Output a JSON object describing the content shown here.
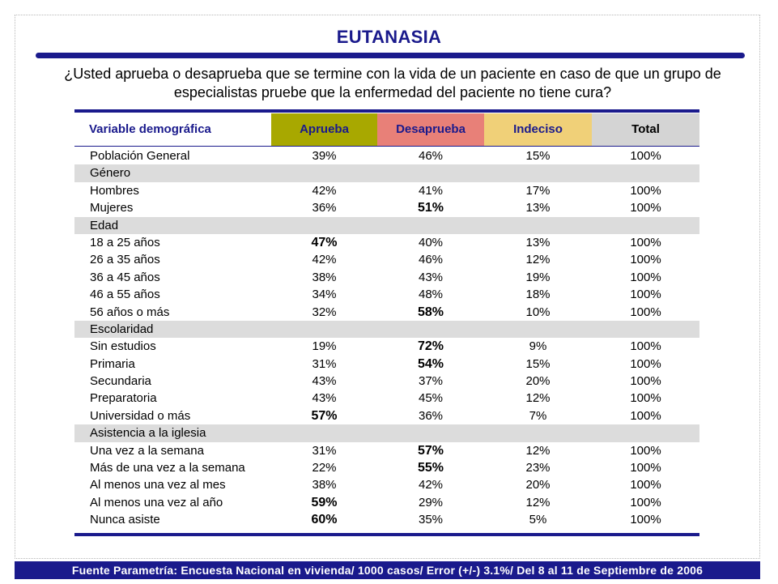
{
  "title": "EUTANASIA",
  "question": "¿Usted aprueba o desaprueba que se termine con la vida de un paciente en caso de que un grupo de especialistas pruebe que la enfermedad del paciente no tiene cura?",
  "colors": {
    "navy": "#1a1a8c",
    "aprueba": "#a8a800",
    "desaprueba": "#e88078",
    "indeciso": "#f0d078",
    "total": "#d4d4d4",
    "group_bg": "#dcdcdc"
  },
  "headers": {
    "variable": "Variable demográfica",
    "aprueba": "Aprueba",
    "desaprueba": "Desaprueba",
    "indeciso": "Indeciso",
    "total": "Total"
  },
  "rows": [
    {
      "label": "Población General",
      "aprueba": "39%",
      "desaprueba": "46%",
      "indeciso": "15%",
      "total": "100%"
    },
    {
      "label": "Género",
      "group": true
    },
    {
      "label": "Hombres",
      "aprueba": "42%",
      "desaprueba": "41%",
      "indeciso": "17%",
      "total": "100%"
    },
    {
      "label": "Mujeres",
      "aprueba": "36%",
      "desaprueba": "51%",
      "indeciso": "13%",
      "total": "100%",
      "bold": "desaprueba"
    },
    {
      "label": "Edad",
      "group": true
    },
    {
      "label": "18 a 25 años",
      "aprueba": "47%",
      "desaprueba": "40%",
      "indeciso": "13%",
      "total": "100%",
      "bold": "aprueba"
    },
    {
      "label": "26 a 35 años",
      "aprueba": "42%",
      "desaprueba": "46%",
      "indeciso": "12%",
      "total": "100%"
    },
    {
      "label": "36 a 45 años",
      "aprueba": "38%",
      "desaprueba": "43%",
      "indeciso": "19%",
      "total": "100%"
    },
    {
      "label": "46 a 55 años",
      "aprueba": "34%",
      "desaprueba": "48%",
      "indeciso": "18%",
      "total": "100%"
    },
    {
      "label": "56 años o más",
      "aprueba": "32%",
      "desaprueba": "58%",
      "indeciso": "10%",
      "total": "100%",
      "bold": "desaprueba"
    },
    {
      "label": "Escolaridad",
      "group": true
    },
    {
      "label": "Sin estudios",
      "aprueba": "19%",
      "desaprueba": "72%",
      "indeciso": "9%",
      "total": "100%",
      "bold": "desaprueba"
    },
    {
      "label": "Primaria",
      "aprueba": "31%",
      "desaprueba": "54%",
      "indeciso": "15%",
      "total": "100%",
      "bold": "desaprueba"
    },
    {
      "label": "Secundaria",
      "aprueba": "43%",
      "desaprueba": "37%",
      "indeciso": "20%",
      "total": "100%"
    },
    {
      "label": "Preparatoria",
      "aprueba": "43%",
      "desaprueba": "45%",
      "indeciso": "12%",
      "total": "100%"
    },
    {
      "label": "Universidad o más",
      "aprueba": "57%",
      "desaprueba": "36%",
      "indeciso": "7%",
      "total": "100%",
      "bold": "aprueba"
    },
    {
      "label": "Asistencia a la iglesia",
      "group": true
    },
    {
      "label": "Una vez a la semana",
      "aprueba": "31%",
      "desaprueba": "57%",
      "indeciso": "12%",
      "total": "100%",
      "bold": "desaprueba"
    },
    {
      "label": "Más de una vez a la semana",
      "aprueba": "22%",
      "desaprueba": "55%",
      "indeciso": "23%",
      "total": "100%",
      "bold": "desaprueba"
    },
    {
      "label": "Al menos una vez al mes",
      "aprueba": "38%",
      "desaprueba": "42%",
      "indeciso": "20%",
      "total": "100%"
    },
    {
      "label": "Al menos una vez al año",
      "aprueba": "59%",
      "desaprueba": "29%",
      "indeciso": "12%",
      "total": "100%",
      "bold": "aprueba"
    },
    {
      "label": "Nunca asiste",
      "aprueba": "60%",
      "desaprueba": "35%",
      "indeciso": "5%",
      "total": "100%",
      "bold": "aprueba"
    }
  ],
  "footer": "Fuente Parametría: Encuesta Nacional en vivienda/ 1000 casos/ Error (+/-) 3.1%/ Del 8 al 11 de Septiembre de 2006"
}
